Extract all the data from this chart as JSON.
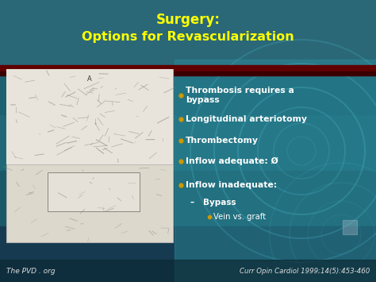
{
  "title_line1": "Surgery:",
  "title_line2": "Options for Revascularization",
  "title_color": "#FFFF00",
  "title_shadow_color": "#888800",
  "bg_main": "#1a5a6a",
  "bg_top_bar": "#2a6878",
  "bg_right_swirl": "#3ab0c8",
  "separator_color": "#7a0000",
  "bullet_color": "#CC9900",
  "text_color": "#FFFFFF",
  "text_shadow": "#666666",
  "bullets": [
    "Thrombosis requires a\nbypass",
    "Longitudinal arteriotomy",
    "Thrombectomy",
    "Inflow adequate: Ø",
    "Inflow inadequate:"
  ],
  "sub1": "–   Bypass",
  "sub2": "Vein vs. graft",
  "footer_left": "The PVD . org",
  "footer_right": "Curr Opin Cardiol 1999;14(5):453-460",
  "footer_color": "#DDDDDD",
  "img_bg": "#e8e4dc",
  "img_border": "#999999"
}
